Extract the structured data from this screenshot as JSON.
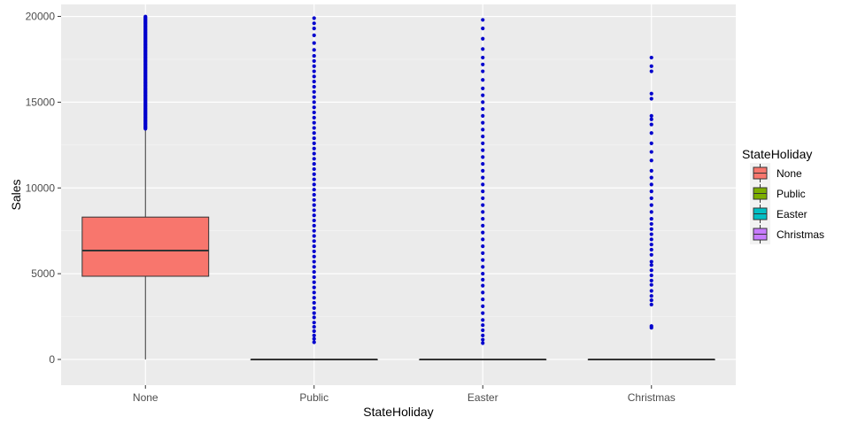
{
  "chart_data": {
    "type": "box",
    "xlabel": "StateHoliday",
    "ylabel": "Sales",
    "ylim": [
      -1500,
      20700
    ],
    "yticks": [
      0,
      5000,
      10000,
      15000,
      20000
    ],
    "categories": [
      "None",
      "Public",
      "Easter",
      "Christmas"
    ],
    "colors": {
      "None": "#F8766D",
      "Public": "#7CAE00",
      "Easter": "#00BFC4",
      "Christmas": "#C77CFF",
      "outlier": "#0000CD",
      "panel": "#EBEBEB",
      "grid": "#FFFFFF"
    },
    "boxes": [
      {
        "category": "None",
        "min": 0,
        "q1": 4850,
        "median": 6350,
        "q3": 8300,
        "max": 13400,
        "outlier_range": [
          13450,
          20000
        ]
      },
      {
        "category": "Public",
        "min": 0,
        "q1": 0,
        "median": 0,
        "q3": 0,
        "max": 0,
        "outliers": [
          1000,
          1200,
          1400,
          1650,
          1900,
          2150,
          2450,
          2700,
          3000,
          3300,
          3600,
          3900,
          4200,
          4500,
          4800,
          5100,
          5400,
          5700,
          6000,
          6300,
          6600,
          6900,
          7200,
          7500,
          7800,
          8100,
          8400,
          8700,
          9000,
          9300,
          9600,
          9900,
          10200,
          10500,
          10800,
          11100,
          11400,
          11700,
          12000,
          12300,
          12600,
          12900,
          13200,
          13500,
          13800,
          14100,
          14400,
          14700,
          15000,
          15300,
          15600,
          15900,
          16200,
          16500,
          16800,
          17100,
          17400,
          17700,
          18050,
          18450,
          18900,
          19300,
          19600,
          19900
        ]
      },
      {
        "category": "Easter",
        "min": 0,
        "q1": 0,
        "median": 0,
        "q3": 0,
        "max": 0,
        "outliers": [
          950,
          1150,
          1400,
          1700,
          2000,
          2300,
          2700,
          3100,
          3500,
          3900,
          4300,
          4650,
          5000,
          5400,
          5800,
          6200,
          6600,
          7000,
          7400,
          7800,
          8200,
          8600,
          9000,
          9400,
          9800,
          10200,
          10600,
          11000,
          11400,
          11800,
          12200,
          12600,
          13000,
          13400,
          13800,
          14200,
          14600,
          15000,
          15400,
          15800,
          16300,
          16800,
          17200,
          17600,
          18100,
          18700,
          19300,
          19800
        ]
      },
      {
        "category": "Christmas",
        "min": 0,
        "q1": 0,
        "median": 0,
        "q3": 0,
        "max": 0,
        "outliers": [
          1850,
          1950,
          3200,
          3450,
          3700,
          4000,
          4350,
          4600,
          4900,
          5200,
          5500,
          5700,
          6100,
          6400,
          6700,
          7000,
          7300,
          7600,
          7900,
          8200,
          8600,
          9000,
          9400,
          9800,
          10200,
          10600,
          11000,
          11600,
          12100,
          12600,
          13200,
          13700,
          14000,
          14200,
          15200,
          15500,
          16800,
          17100,
          17600
        ]
      }
    ],
    "legend": {
      "title": "StateHoliday",
      "position": "right",
      "items": [
        "None",
        "Public",
        "Easter",
        "Christmas"
      ]
    },
    "grid": true
  }
}
